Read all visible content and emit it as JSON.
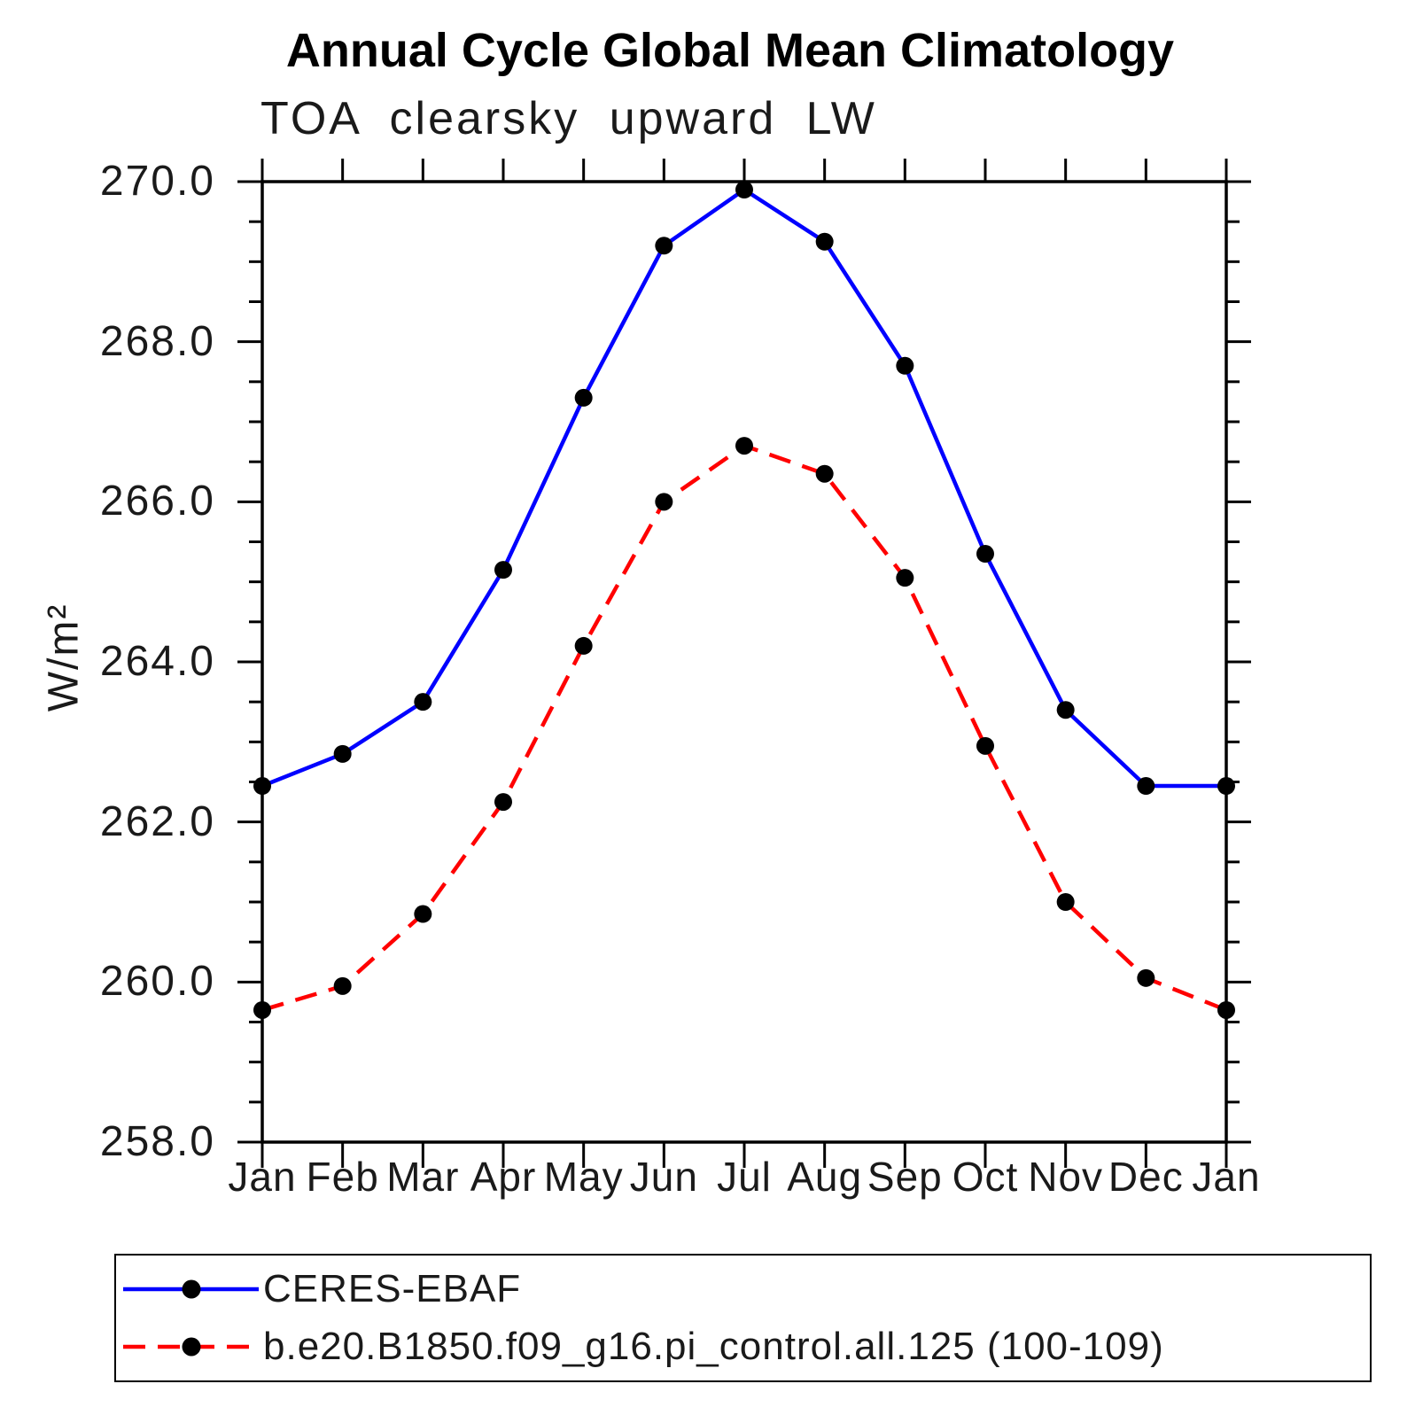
{
  "title": "Annual Cycle Global Mean Climatology",
  "subtitle": "TOA clearsky upward LW",
  "y_axis": {
    "label": "W/m²",
    "tick_labels": [
      "270.0",
      "268.0",
      "266.0",
      "264.0",
      "262.0",
      "260.0",
      "258.0"
    ],
    "major_tick_values": [
      270.0,
      268.0,
      266.0,
      264.0,
      262.0,
      260.0,
      258.0
    ],
    "minor_tick_interval": 0.5
  },
  "x_axis": {
    "tick_labels": [
      "Jan",
      "Feb",
      "Mar",
      "Apr",
      "May",
      "Jun",
      "Jul",
      "Aug",
      "Sep",
      "Oct",
      "Nov",
      "Dec",
      "Jan"
    ]
  },
  "legend": {
    "items": [
      {
        "label": "CERES-EBAF",
        "color": "#0000ff",
        "style": "solid",
        "marker": "filled-circle"
      },
      {
        "label": "b.e20.B1850.f09_g16.pi_control.all.125 (100-109)",
        "color": "#ff0000",
        "style": "dashed",
        "marker": "filled-circle"
      }
    ]
  },
  "colors": {
    "series1": "#0000ff",
    "series2": "#ff0000",
    "marker": "#000000",
    "axis": "#000000",
    "background": "#ffffff"
  },
  "chart_data": {
    "type": "line",
    "title": "Annual Cycle Global Mean Climatology",
    "subtitle": "TOA clearsky upward LW",
    "ylabel": "W/m²",
    "xlabel": "",
    "categories": [
      "Jan",
      "Feb",
      "Mar",
      "Apr",
      "May",
      "Jun",
      "Jul",
      "Aug",
      "Sep",
      "Oct",
      "Nov",
      "Dec",
      "Jan"
    ],
    "series": [
      {
        "name": "CERES-EBAF",
        "color": "#0000ff",
        "line_style": "solid",
        "marker": "circle",
        "values": [
          262.45,
          262.85,
          263.5,
          265.15,
          267.3,
          269.2,
          269.9,
          269.25,
          267.7,
          265.35,
          263.4,
          262.45,
          262.45
        ]
      },
      {
        "name": "b.e20.B1850.f09_g16.pi_control.all.125 (100-109)",
        "color": "#ff0000",
        "line_style": "dashed",
        "marker": "circle",
        "values": [
          259.65,
          259.95,
          260.85,
          262.25,
          264.2,
          266.0,
          266.7,
          266.35,
          265.05,
          262.95,
          261.0,
          260.05,
          259.65
        ]
      }
    ],
    "ylim": [
      258.0,
      270.0
    ],
    "y_major_tick_interval": 2.0,
    "y_minor_tick_interval": 0.5,
    "grid": false,
    "legend_position": "bottom"
  }
}
